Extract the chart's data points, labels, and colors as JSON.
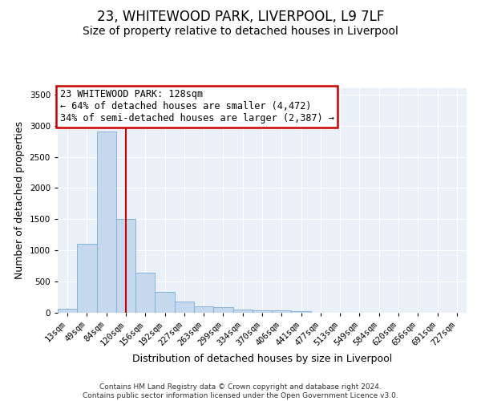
{
  "title": "23, WHITEWOOD PARK, LIVERPOOL, L9 7LF",
  "subtitle": "Size of property relative to detached houses in Liverpool",
  "xlabel": "Distribution of detached houses by size in Liverpool",
  "ylabel": "Number of detached properties",
  "footnote": "Contains HM Land Registry data © Crown copyright and database right 2024.\nContains public sector information licensed under the Open Government Licence v3.0.",
  "categories": [
    "13sqm",
    "49sqm",
    "84sqm",
    "120sqm",
    "156sqm",
    "192sqm",
    "227sqm",
    "263sqm",
    "299sqm",
    "334sqm",
    "370sqm",
    "406sqm",
    "441sqm",
    "477sqm",
    "513sqm",
    "549sqm",
    "584sqm",
    "620sqm",
    "656sqm",
    "691sqm",
    "727sqm"
  ],
  "values": [
    60,
    1100,
    2900,
    1500,
    640,
    340,
    185,
    105,
    90,
    55,
    35,
    35,
    30,
    0,
    0,
    0,
    0,
    0,
    0,
    0,
    0
  ],
  "bar_color": "#c5d8ed",
  "bar_edge_color": "#7aadd4",
  "vline_x": 3,
  "vline_color": "#cc0000",
  "ylim": [
    0,
    3600
  ],
  "yticks": [
    0,
    500,
    1000,
    1500,
    2000,
    2500,
    3000,
    3500
  ],
  "annotation_title": "23 WHITEWOOD PARK: 128sqm",
  "annotation_line1": "← 64% of detached houses are smaller (4,472)",
  "annotation_line2": "34% of semi-detached houses are larger (2,387) →",
  "annotation_box_color": "#cc0000",
  "bg_color": "#eaf0f8",
  "title_fontsize": 12,
  "subtitle_fontsize": 10,
  "axis_label_fontsize": 9,
  "tick_fontsize": 7.5,
  "annotation_fontsize": 8.5,
  "footnote_fontsize": 6.5
}
